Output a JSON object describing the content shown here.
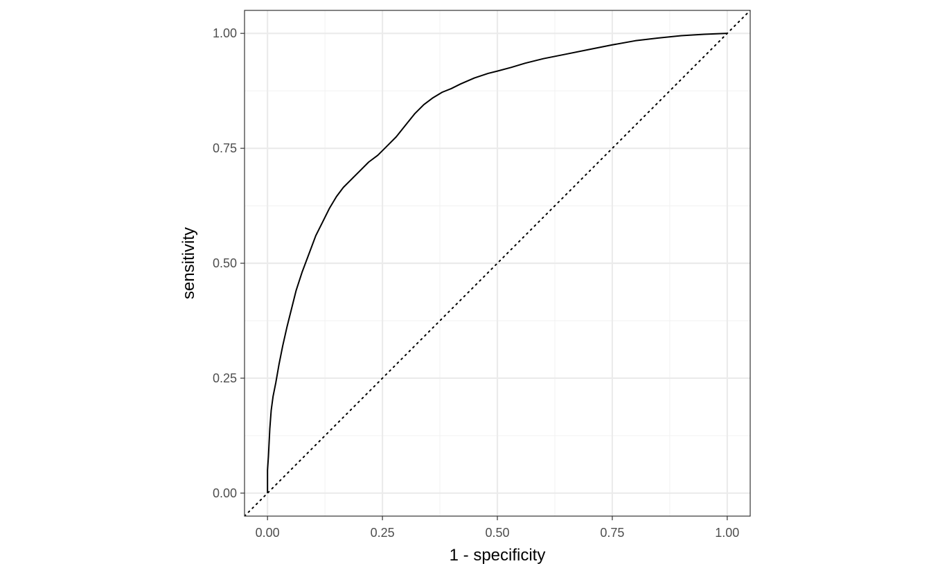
{
  "chart_data": {
    "type": "line",
    "title": "",
    "xlabel": "1 - specificity",
    "ylabel": "sensitivity",
    "xlim": [
      -0.05,
      1.05
    ],
    "ylim": [
      -0.05,
      1.05
    ],
    "x_ticks": [
      0.0,
      0.25,
      0.5,
      0.75,
      1.0
    ],
    "x_tick_labels": [
      "0.00",
      "0.25",
      "0.50",
      "0.75",
      "1.00"
    ],
    "y_ticks": [
      0.0,
      0.25,
      0.5,
      0.75,
      1.0
    ],
    "y_tick_labels": [
      "0.00",
      "0.25",
      "0.50",
      "0.75",
      "1.00"
    ],
    "grid": true,
    "legend": "none",
    "theme": "black-and-white panel",
    "colors": {
      "curve": "#000000",
      "reference": "#000000",
      "grid_major": "#ebebeb",
      "grid_minor": "#f2f2f2",
      "panel_border": "#333333",
      "tick_label": "#4d4d4d"
    },
    "series": [
      {
        "style": "solid",
        "x": [
          0.0,
          0.0,
          0.002,
          0.005,
          0.008,
          0.012,
          0.018,
          0.025,
          0.033,
          0.042,
          0.052,
          0.062,
          0.075,
          0.09,
          0.105,
          0.12,
          0.135,
          0.15,
          0.165,
          0.18,
          0.2,
          0.22,
          0.24,
          0.26,
          0.28,
          0.3,
          0.32,
          0.34,
          0.36,
          0.38,
          0.4,
          0.42,
          0.45,
          0.48,
          0.5,
          0.53,
          0.56,
          0.6,
          0.65,
          0.7,
          0.75,
          0.8,
          0.85,
          0.9,
          0.95,
          1.0
        ],
        "y": [
          0.0,
          0.05,
          0.08,
          0.14,
          0.18,
          0.21,
          0.24,
          0.28,
          0.32,
          0.36,
          0.4,
          0.44,
          0.48,
          0.52,
          0.56,
          0.59,
          0.62,
          0.645,
          0.665,
          0.68,
          0.7,
          0.72,
          0.735,
          0.755,
          0.775,
          0.8,
          0.825,
          0.845,
          0.86,
          0.872,
          0.88,
          0.89,
          0.903,
          0.913,
          0.918,
          0.926,
          0.935,
          0.945,
          0.955,
          0.965,
          0.975,
          0.984,
          0.99,
          0.995,
          0.998,
          1.0
        ]
      },
      {
        "style": "dotted",
        "x": [
          -0.05,
          1.05
        ],
        "y": [
          -0.05,
          1.05
        ]
      }
    ]
  }
}
